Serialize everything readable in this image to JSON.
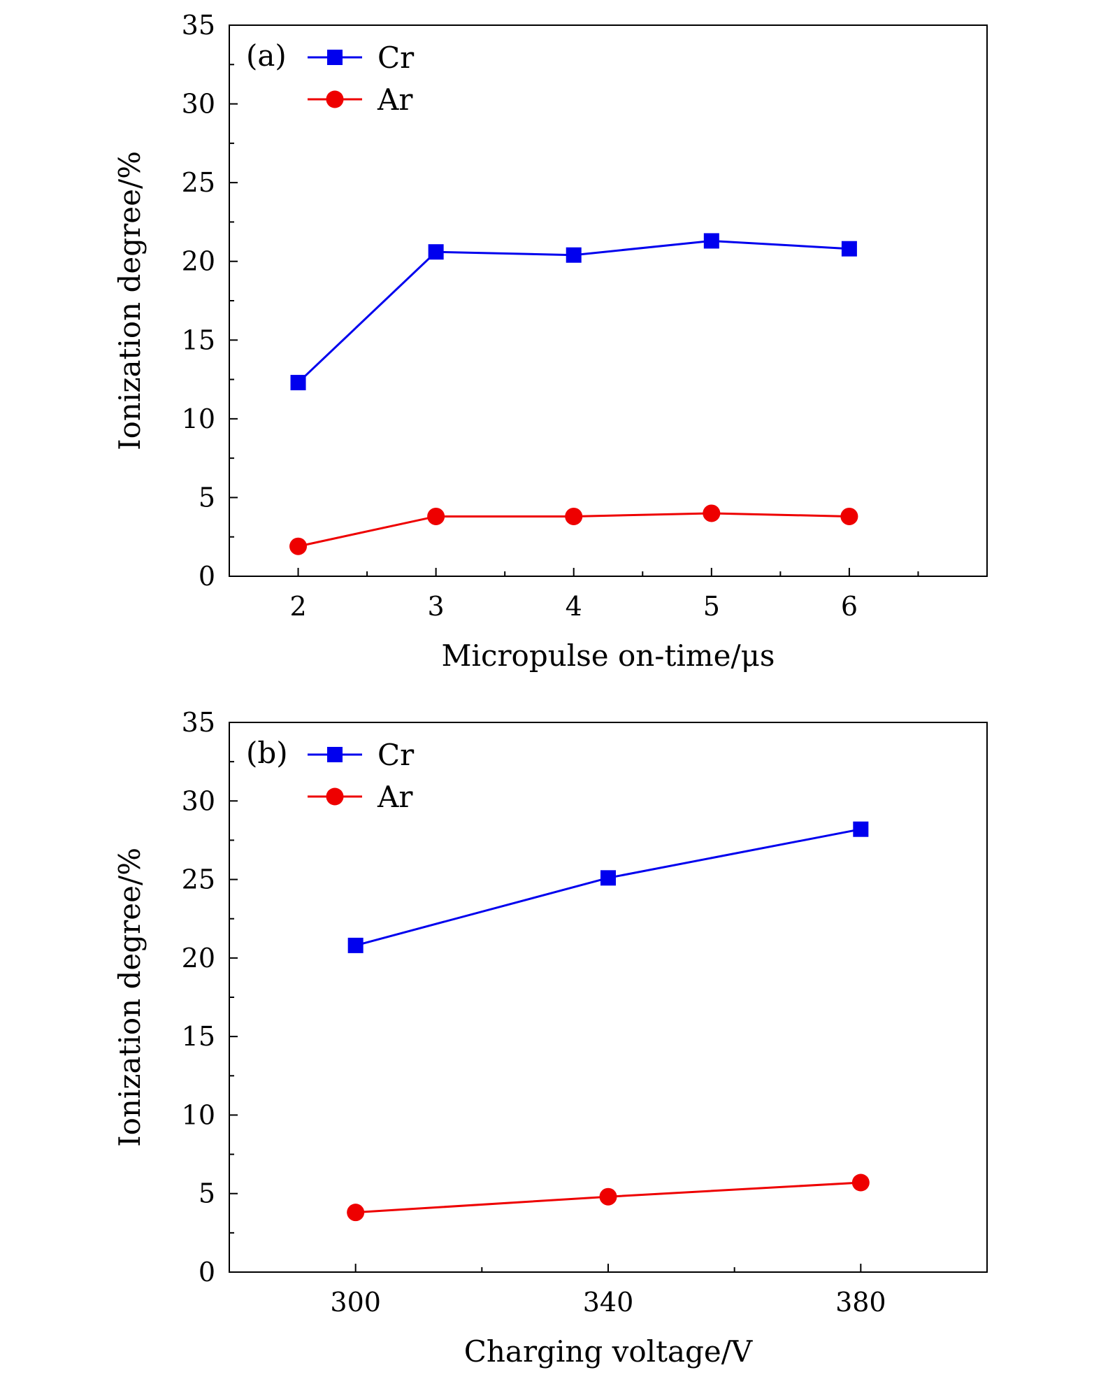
{
  "chart_data": [
    {
      "type": "line",
      "panel_label": "(a)",
      "xlabel": "Micropulse on-time/μs",
      "ylabel": "Ionization degree/%",
      "xlim": [
        1.5,
        7.0
      ],
      "ylim": [
        0,
        35
      ],
      "x_ticks": [
        2,
        3,
        4,
        5,
        6
      ],
      "x_tick_labels": [
        "2",
        "3",
        "4",
        "5",
        "6"
      ],
      "x_minor_ticks": [
        2.5,
        3.5,
        4.5,
        5.5,
        6.5
      ],
      "y_ticks": [
        0,
        5,
        10,
        15,
        20,
        25,
        30,
        35
      ],
      "y_tick_labels": [
        "0",
        "5",
        "10",
        "15",
        "20",
        "25",
        "30",
        "35"
      ],
      "y_minor_ticks": [
        2.5,
        7.5,
        12.5,
        17.5,
        22.5,
        27.5,
        32.5
      ],
      "x": [
        2,
        3,
        4,
        5,
        6
      ],
      "legend_position": "top-left",
      "series": [
        {
          "name": "Cr",
          "marker": "square",
          "color": "#0000ee",
          "values": [
            12.3,
            20.6,
            20.4,
            21.3,
            20.8
          ]
        },
        {
          "name": "Ar",
          "marker": "circle",
          "color": "#ee0000",
          "values": [
            1.9,
            3.8,
            3.8,
            4.0,
            3.8
          ]
        }
      ]
    },
    {
      "type": "line",
      "panel_label": "(b)",
      "xlabel": "Charging voltage/V",
      "ylabel": "Ionization degree/%",
      "xlim": [
        280,
        400
      ],
      "ylim": [
        0,
        35
      ],
      "x_ticks": [
        300,
        340,
        380
      ],
      "x_tick_labels": [
        "300",
        "340",
        "380"
      ],
      "x_minor_ticks": [
        320,
        360
      ],
      "y_ticks": [
        0,
        5,
        10,
        15,
        20,
        25,
        30,
        35
      ],
      "y_tick_labels": [
        "0",
        "5",
        "10",
        "15",
        "20",
        "25",
        "30",
        "35"
      ],
      "y_minor_ticks": [
        2.5,
        7.5,
        12.5,
        17.5,
        22.5,
        27.5,
        32.5
      ],
      "x": [
        300,
        340,
        380
      ],
      "legend_position": "top-left",
      "series": [
        {
          "name": "Cr",
          "marker": "square",
          "color": "#0000ee",
          "values": [
            20.8,
            25.1,
            28.2
          ]
        },
        {
          "name": "Ar",
          "marker": "circle",
          "color": "#ee0000",
          "values": [
            3.8,
            4.8,
            5.7
          ]
        }
      ]
    }
  ]
}
